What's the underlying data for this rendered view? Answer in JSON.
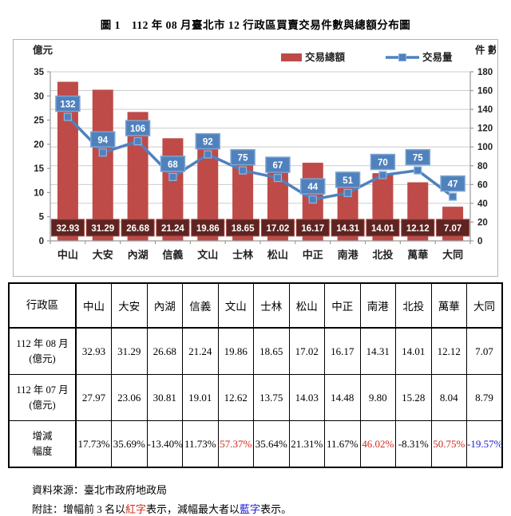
{
  "page": {
    "title": "圖 1　112 年 08 月臺北市 12 行政區買賣交易件數與總額分布圖"
  },
  "chart_data": {
    "type": "bar",
    "subtype": "bar+line combo (dual axis)",
    "categories": [
      "中山",
      "大安",
      "內湖",
      "信義",
      "文山",
      "士林",
      "松山",
      "中正",
      "南港",
      "北投",
      "萬華",
      "大同"
    ],
    "series": [
      {
        "name": "交易總額",
        "type": "bar",
        "axis": "left",
        "values": [
          32.93,
          31.29,
          26.68,
          21.24,
          19.86,
          18.65,
          17.02,
          16.17,
          14.31,
          14.01,
          12.12,
          7.07
        ]
      },
      {
        "name": "交易量",
        "type": "line",
        "axis": "right",
        "values": [
          132,
          94,
          106,
          68,
          92,
          75,
          67,
          44,
          51,
          70,
          75,
          47
        ]
      }
    ],
    "left_axis": {
      "label": "億元",
      "min": 0,
      "max": 35,
      "step": 5,
      "ticks": [
        "0",
        "5",
        "10",
        "15",
        "20",
        "25",
        "30",
        "35"
      ]
    },
    "right_axis": {
      "label": "件 數",
      "min": 0,
      "max": 180,
      "step": 20,
      "ticks": [
        "0",
        "20",
        "40",
        "60",
        "80",
        "100",
        "120",
        "140",
        "160",
        "180"
      ]
    },
    "grid": "horizontal gridlines every 20 (right axis)",
    "legend_position": "top-right",
    "colors": {
      "bar": "#be4b48",
      "bar_label_bg": "#5e2421",
      "bar_label_border": "#a3443f",
      "line": "#4f81bd",
      "line_label_bg": "#4f81bd",
      "line_label_border": "#7fa5d1",
      "label_text": "#ffffff",
      "gridline": "#cccccc",
      "axis": "#9a9a9a",
      "tick_text": "#222222"
    }
  },
  "table": {
    "header": [
      "行政區",
      "中山",
      "大安",
      "內湖",
      "信義",
      "文山",
      "士林",
      "松山",
      "中正",
      "南港",
      "北投",
      "萬華",
      "大同"
    ],
    "rows": [
      {
        "label_lines": [
          "112 年 08 月",
          "(億元)"
        ],
        "values": [
          "32.93",
          "31.29",
          "26.68",
          "21.24",
          "19.86",
          "18.65",
          "17.02",
          "16.17",
          "14.31",
          "14.01",
          "12.12",
          "7.07"
        ],
        "highlights": [
          null,
          null,
          null,
          null,
          null,
          null,
          null,
          null,
          null,
          null,
          null,
          null
        ]
      },
      {
        "label_lines": [
          "112 年 07 月",
          "(億元)"
        ],
        "values": [
          "27.97",
          "23.06",
          "30.81",
          "19.01",
          "12.62",
          "13.75",
          "14.03",
          "14.48",
          "9.80",
          "15.28",
          "8.04",
          "8.79"
        ],
        "highlights": [
          null,
          null,
          null,
          null,
          null,
          null,
          null,
          null,
          null,
          null,
          null,
          null
        ]
      },
      {
        "label_lines": [
          "增減",
          "幅度"
        ],
        "values": [
          "17.73%",
          "35.69%",
          "-13.40%",
          "11.73%",
          "57.37%",
          "35.64%",
          "21.31%",
          "11.67%",
          "46.02%",
          "-8.31%",
          "50.75%",
          "-19.57%"
        ],
        "highlights": [
          null,
          null,
          null,
          null,
          "red",
          null,
          null,
          null,
          "red",
          null,
          "red",
          "blue"
        ]
      }
    ]
  },
  "footer": {
    "source": "資料來源：臺北市政府地政局",
    "note_parts": [
      {
        "text": "附註：增幅前 3 名以",
        "color": null
      },
      {
        "text": "紅字",
        "color": "red"
      },
      {
        "text": "表示，減幅最大者以",
        "color": null
      },
      {
        "text": "藍字",
        "color": "blue"
      },
      {
        "text": "表示。",
        "color": null
      }
    ]
  }
}
